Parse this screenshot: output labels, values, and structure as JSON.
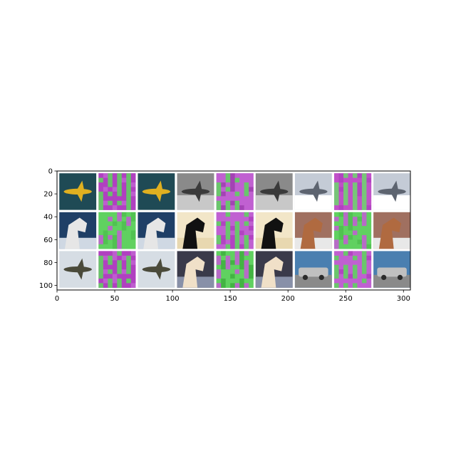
{
  "chart_data": {
    "type": "image-grid",
    "title": "",
    "xlabel": "",
    "ylabel": "",
    "xlim": [
      0,
      306
    ],
    "ylim": [
      104,
      0
    ],
    "x_ticks": [
      0,
      50,
      100,
      150,
      200,
      250,
      300
    ],
    "y_ticks": [
      0,
      20,
      40,
      60,
      80,
      100
    ],
    "grid": false,
    "rows": 3,
    "cols": 9,
    "cell_size": 32,
    "padding": 2,
    "tiles": [
      [
        {
          "kind": "airplane-yellow",
          "colors": [
            "#1f4a55",
            "#e0b020",
            "#2d5a66"
          ]
        },
        {
          "kind": "noise",
          "colors": [
            "#b040c0",
            "#60d060",
            "#c060d0"
          ]
        },
        {
          "kind": "airplane-yellow",
          "colors": [
            "#1f4a55",
            "#e0b020",
            "#2d5a66"
          ]
        },
        {
          "kind": "airplane-ground",
          "colors": [
            "#8a8a8a",
            "#3a3a3a",
            "#c8c8c8"
          ]
        },
        {
          "kind": "noise",
          "colors": [
            "#c060d0",
            "#60d060",
            "#a040b0"
          ]
        },
        {
          "kind": "airplane-ground",
          "colors": [
            "#8a8a8a",
            "#3a3a3a",
            "#c8c8c8"
          ]
        },
        {
          "kind": "airliner",
          "colors": [
            "#c4cbd6",
            "#5d6470",
            "#ffffff"
          ]
        },
        {
          "kind": "noise",
          "colors": [
            "#c050c8",
            "#70d070",
            "#b040c0"
          ]
        },
        {
          "kind": "airliner",
          "colors": [
            "#c4cbd6",
            "#5d6470",
            "#ffffff"
          ]
        }
      ],
      [
        {
          "kind": "horse-white",
          "colors": [
            "#1f3f66",
            "#e6e6e6",
            "#cfd8e3"
          ]
        },
        {
          "kind": "noise",
          "colors": [
            "#60d060",
            "#c060d0",
            "#50c050"
          ]
        },
        {
          "kind": "horse-white",
          "colors": [
            "#1f3f66",
            "#e6e6e6",
            "#cfd8e3"
          ]
        },
        {
          "kind": "horse-black",
          "colors": [
            "#f2e6c8",
            "#111111",
            "#e8d8b0"
          ]
        },
        {
          "kind": "noise",
          "colors": [
            "#c060d0",
            "#60d060",
            "#b040c0"
          ]
        },
        {
          "kind": "horse-black",
          "colors": [
            "#f2e6c8",
            "#111111",
            "#e8d8b0"
          ]
        },
        {
          "kind": "horse-brown",
          "colors": [
            "#a07060",
            "#b06a40",
            "#e8e8e8"
          ]
        },
        {
          "kind": "noise",
          "colors": [
            "#60d060",
            "#c060d0",
            "#50c050"
          ]
        },
        {
          "kind": "horse-brown",
          "colors": [
            "#a07060",
            "#b06a40",
            "#e8e8e8"
          ]
        }
      ],
      [
        {
          "kind": "propeller-plane",
          "colors": [
            "#d6dde4",
            "#4a4a3a",
            "#c8d0d8"
          ]
        },
        {
          "kind": "noise",
          "colors": [
            "#b040c0",
            "#60d060",
            "#c060d0"
          ]
        },
        {
          "kind": "propeller-plane",
          "colors": [
            "#d6dde4",
            "#4a4a3a",
            "#c8d0d8"
          ]
        },
        {
          "kind": "horse-pale",
          "colors": [
            "#3a3a4a",
            "#f0e0c8",
            "#8890a8"
          ]
        },
        {
          "kind": "noise",
          "colors": [
            "#60d060",
            "#c060d0",
            "#40b040"
          ]
        },
        {
          "kind": "horse-pale",
          "colors": [
            "#3a3a4a",
            "#f0e0c8",
            "#8890a8"
          ]
        },
        {
          "kind": "car-silver",
          "colors": [
            "#4a7fb0",
            "#c0c0c0",
            "#2a2a2a"
          ]
        },
        {
          "kind": "noise",
          "colors": [
            "#c060d0",
            "#60d060",
            "#b040c0"
          ]
        },
        {
          "kind": "car-silver",
          "colors": [
            "#4a7fb0",
            "#c0c0c0",
            "#2a2a2a"
          ]
        }
      ]
    ]
  }
}
